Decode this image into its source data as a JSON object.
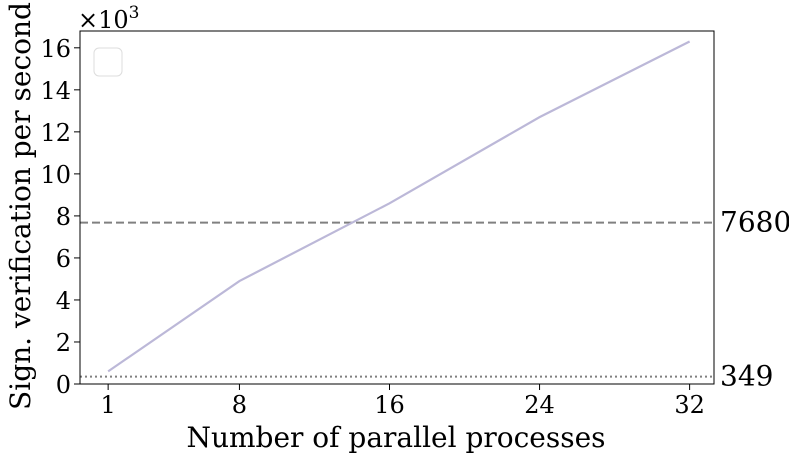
{
  "chart_data": {
    "type": "line",
    "title": "",
    "xlabel": "Number of parallel processes",
    "ylabel": "Sign. verification per second",
    "y_scale_text": "×10",
    "y_scale_exp": "3",
    "xlim": [
      -0.5,
      33.3
    ],
    "ylim": [
      0,
      16.8
    ],
    "x_ticks": [
      1,
      8,
      16,
      24,
      32
    ],
    "y_ticks": [
      0,
      2,
      4,
      6,
      8,
      10,
      12,
      14,
      16
    ],
    "grid": false,
    "legend": "top-left (empty)",
    "series": [
      {
        "color": "#bcb8d8",
        "x": [
          1,
          8,
          16,
          24,
          32
        ],
        "y": [
          0.6,
          4.9,
          8.6,
          12.7,
          16.3
        ]
      }
    ],
    "reference_lines": [
      {
        "value": 7.68,
        "label": "7680",
        "style": "dashed",
        "color": "#808080"
      },
      {
        "value": 0.349,
        "label": "349",
        "style": "dotted",
        "color": "#808080"
      }
    ]
  }
}
